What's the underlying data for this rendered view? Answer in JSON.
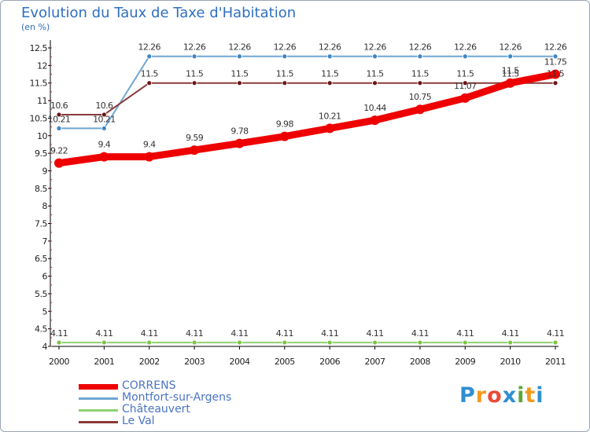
{
  "chart_data": {
    "type": "line",
    "title": "Evolution du Taux de Taxe d'Habitation",
    "ylabel": "(en %)",
    "xlabel": "",
    "ylim": [
      4,
      12.5
    ],
    "yticks": [
      "4",
      "4.5",
      "5",
      "5.5",
      "6",
      "6.5",
      "7",
      "7.5",
      "8",
      "8.5",
      "9",
      "9.5",
      "10",
      "10.5",
      "11",
      "11.5",
      "12",
      "12.5"
    ],
    "x": [
      "2000",
      "2001",
      "2002",
      "2003",
      "2004",
      "2005",
      "2006",
      "2007",
      "2008",
      "2009",
      "2010",
      "2011"
    ],
    "series": [
      {
        "name": "CORRENS",
        "color": "#ee0000",
        "thick": true,
        "values": [
          9.22,
          9.4,
          9.4,
          9.59,
          9.78,
          9.98,
          10.21,
          10.44,
          10.75,
          11.07,
          11.5,
          11.75
        ],
        "labels": [
          "9.22",
          "9.4",
          "9.4",
          "9.59",
          "9.78",
          "9.98",
          "10.21",
          "10.44",
          "10.75",
          "11.07",
          "11.5",
          "11.75"
        ]
      },
      {
        "name": "Montfort-sur-Argens",
        "color": "#6fa6d3",
        "marker": "#3f85c4",
        "thick": false,
        "values": [
          10.21,
          10.21,
          12.26,
          12.26,
          12.26,
          12.26,
          12.26,
          12.26,
          12.26,
          12.26,
          12.26,
          12.26
        ],
        "labels": [
          "10.21",
          "10.21",
          "12.26",
          "12.26",
          "12.26",
          "12.26",
          "12.26",
          "12.26",
          "12.26",
          "12.26",
          "12.26",
          "12.26"
        ]
      },
      {
        "name": "Châteauvert",
        "color": "#8fd16f",
        "marker": "#7cc444",
        "thick": false,
        "values": [
          4.11,
          4.11,
          4.11,
          4.11,
          4.11,
          4.11,
          4.11,
          4.11,
          4.11,
          4.11,
          4.11,
          4.11
        ],
        "labels": [
          "4.11",
          "4.11",
          "4.11",
          "4.11",
          "4.11",
          "4.11",
          "4.11",
          "4.11",
          "4.11",
          "4.11",
          "4.11",
          "4.11"
        ]
      },
      {
        "name": "Le Val",
        "color": "#8b3a3a",
        "marker": "#6e1414",
        "thick": false,
        "values": [
          10.6,
          10.6,
          11.5,
          11.5,
          11.5,
          11.5,
          11.5,
          11.5,
          11.5,
          11.5,
          11.5,
          11.5
        ],
        "labels": [
          "10.6",
          "10.6",
          "11.5",
          "11.5",
          "11.5",
          "11.5",
          "11.5",
          "11.5",
          "11.5",
          "11.5",
          "11.5",
          "11.5"
        ]
      }
    ],
    "grid": false,
    "legend": "bottom-left"
  },
  "logo": {
    "letters": [
      "P",
      "r",
      "o",
      "x",
      "i",
      "t",
      "i"
    ],
    "colors": [
      "#2f8fd0",
      "#f39a1e",
      "#e94b35",
      "#2f8fd0",
      "#5aa838",
      "#f39a1e",
      "#2f8fd0"
    ]
  }
}
